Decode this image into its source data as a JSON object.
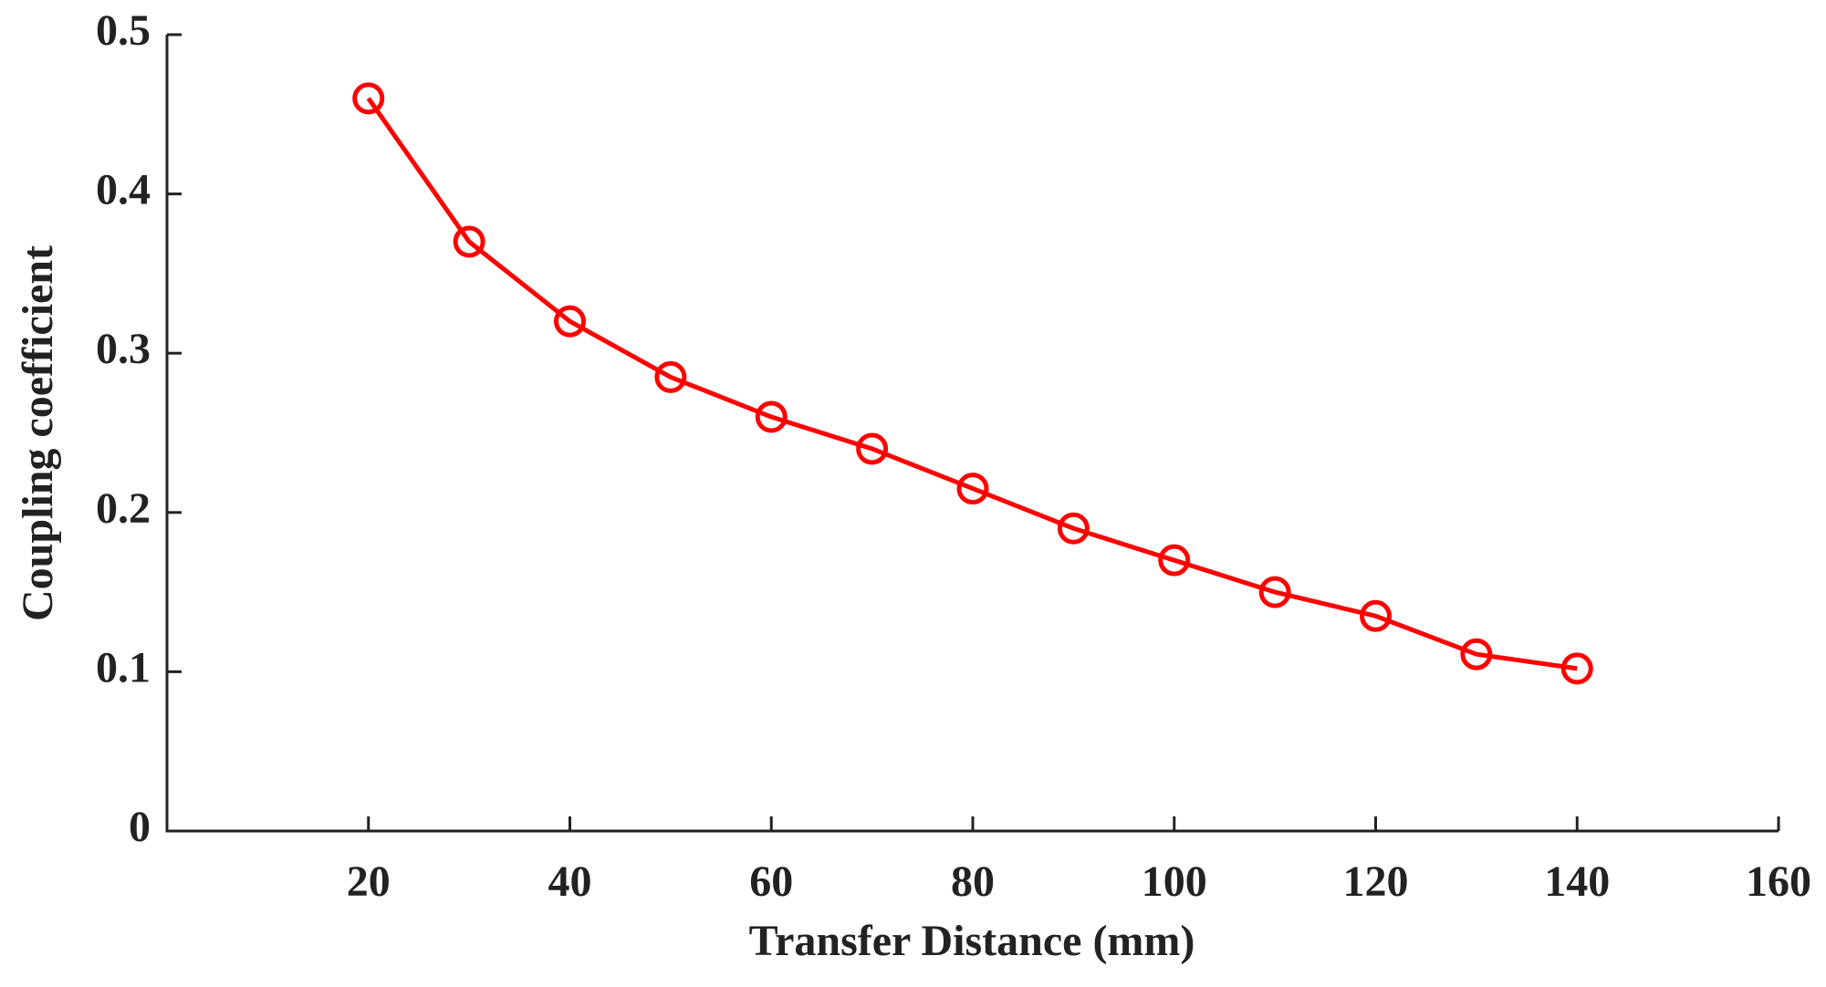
{
  "chart_data": {
    "type": "line",
    "xlabel": "Transfer Distance (mm)",
    "ylabel": "Coupling coefficient",
    "x": [
      20,
      30,
      40,
      50,
      60,
      70,
      80,
      90,
      100,
      110,
      120,
      130,
      140
    ],
    "series": [
      {
        "color": "#ff0000",
        "marker": "circle",
        "values": [
          0.46,
          0.37,
          0.32,
          0.285,
          0.26,
          0.24,
          0.215,
          0.19,
          0.17,
          0.15,
          0.135,
          0.111,
          0.102
        ]
      }
    ],
    "xlim": [
      0,
      160
    ],
    "xticks": [
      20,
      40,
      60,
      80,
      100,
      120,
      140,
      160
    ],
    "ylim": [
      0,
      0.5
    ],
    "yticks": [
      0,
      0.1,
      0.2,
      0.3,
      0.4,
      0.5
    ],
    "grid": false
  }
}
